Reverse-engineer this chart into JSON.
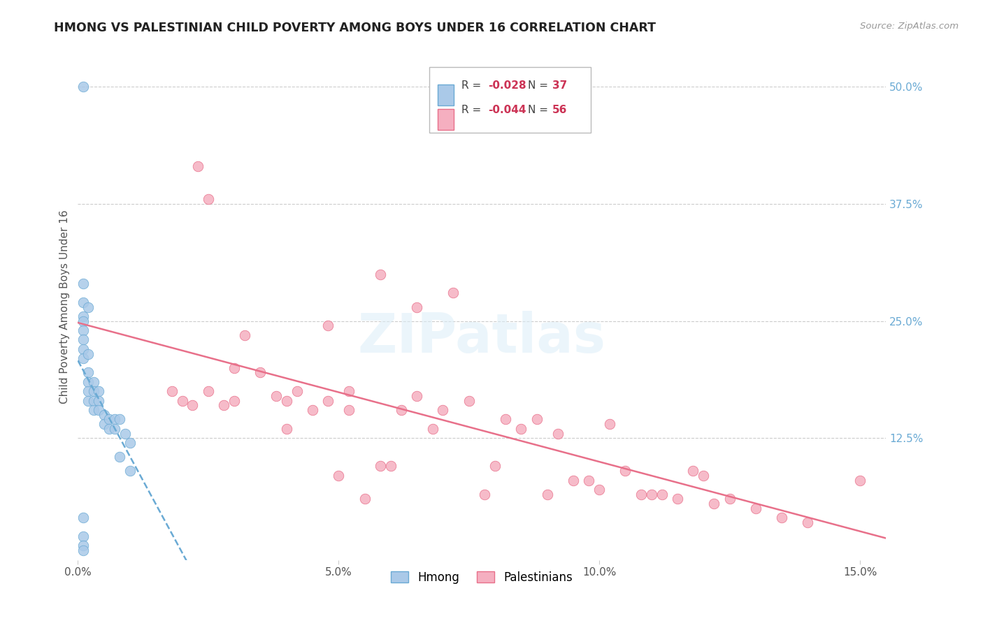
{
  "title": "HMONG VS PALESTINIAN CHILD POVERTY AMONG BOYS UNDER 16 CORRELATION CHART",
  "source": "Source: ZipAtlas.com",
  "ylabel": "Child Poverty Among Boys Under 16",
  "xlim": [
    0.0,
    0.155
  ],
  "ylim": [
    -0.005,
    0.535
  ],
  "hmong_R": -0.028,
  "hmong_N": 37,
  "palestinian_R": -0.044,
  "palestinian_N": 56,
  "hmong_color": "#aac9e8",
  "palestinian_color": "#f5afc0",
  "hmong_edge_color": "#6aaad4",
  "palestinian_edge_color": "#e8708a",
  "hmong_line_color": "#6aaad4",
  "palestinian_line_color": "#e8708a",
  "background_color": "#ffffff",
  "grid_color": "#cccccc",
  "right_tick_color": "#6aaad4",
  "hmong_x": [
    0.001,
    0.001,
    0.001,
    0.001,
    0.001,
    0.001,
    0.001,
    0.001,
    0.001,
    0.002,
    0.002,
    0.002,
    0.002,
    0.002,
    0.002,
    0.003,
    0.003,
    0.003,
    0.003,
    0.004,
    0.004,
    0.004,
    0.005,
    0.005,
    0.006,
    0.006,
    0.007,
    0.007,
    0.008,
    0.008,
    0.009,
    0.01,
    0.01,
    0.001,
    0.001,
    0.001,
    0.001
  ],
  "hmong_y": [
    0.5,
    0.29,
    0.27,
    0.255,
    0.25,
    0.24,
    0.23,
    0.22,
    0.21,
    0.265,
    0.215,
    0.195,
    0.185,
    0.175,
    0.165,
    0.185,
    0.175,
    0.165,
    0.155,
    0.175,
    0.165,
    0.155,
    0.15,
    0.14,
    0.145,
    0.135,
    0.145,
    0.135,
    0.145,
    0.105,
    0.13,
    0.12,
    0.09,
    0.04,
    0.02,
    0.01,
    0.005
  ],
  "pal_x": [
    0.018,
    0.02,
    0.022,
    0.023,
    0.025,
    0.025,
    0.028,
    0.03,
    0.03,
    0.032,
    0.035,
    0.038,
    0.04,
    0.04,
    0.042,
    0.045,
    0.048,
    0.05,
    0.052,
    0.055,
    0.058,
    0.06,
    0.062,
    0.065,
    0.068,
    0.07,
    0.072,
    0.075,
    0.078,
    0.08,
    0.082,
    0.085,
    0.088,
    0.09,
    0.092,
    0.095,
    0.098,
    0.1,
    0.102,
    0.058,
    0.065,
    0.105,
    0.108,
    0.11,
    0.112,
    0.115,
    0.118,
    0.12,
    0.122,
    0.125,
    0.048,
    0.052,
    0.13,
    0.135,
    0.14,
    0.15
  ],
  "pal_y": [
    0.175,
    0.165,
    0.16,
    0.415,
    0.38,
    0.175,
    0.16,
    0.2,
    0.165,
    0.235,
    0.195,
    0.17,
    0.165,
    0.135,
    0.175,
    0.155,
    0.165,
    0.085,
    0.175,
    0.06,
    0.095,
    0.095,
    0.155,
    0.17,
    0.135,
    0.155,
    0.28,
    0.165,
    0.065,
    0.095,
    0.145,
    0.135,
    0.145,
    0.065,
    0.13,
    0.08,
    0.08,
    0.07,
    0.14,
    0.3,
    0.265,
    0.09,
    0.065,
    0.065,
    0.065,
    0.06,
    0.09,
    0.085,
    0.055,
    0.06,
    0.245,
    0.155,
    0.05,
    0.04,
    0.035,
    0.08
  ]
}
